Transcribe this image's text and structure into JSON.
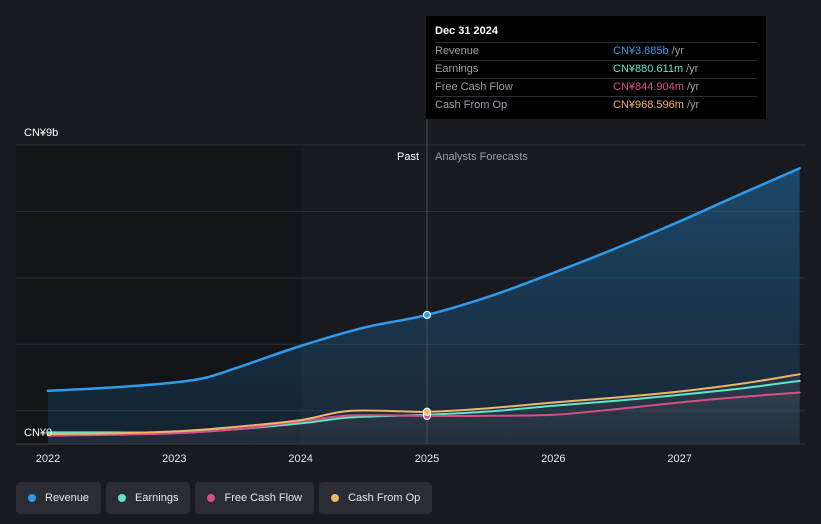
{
  "tooltip": {
    "date": "Dec 31 2024",
    "rows": [
      {
        "label": "Revenue",
        "value": "CN¥3.885b",
        "unit": "/yr",
        "color": "#2f9bea"
      },
      {
        "label": "Earnings",
        "value": "CN¥880.611m",
        "unit": "/yr",
        "color": "#5ee6c8"
      },
      {
        "label": "Free Cash Flow",
        "value": "CN¥844.904m",
        "unit": "/yr",
        "color": "#d64f86"
      },
      {
        "label": "Cash From Op",
        "value": "CN¥968.596m",
        "unit": "/yr",
        "color": "#f0b46a"
      }
    ]
  },
  "legend": [
    {
      "label": "Revenue",
      "color": "#2f9bea"
    },
    {
      "label": "Earnings",
      "color": "#5ee6c8"
    },
    {
      "label": "Free Cash Flow",
      "color": "#d64f86"
    },
    {
      "label": "Cash From Op",
      "color": "#f0b46a"
    }
  ],
  "chart_data": {
    "type": "line",
    "title": "",
    "y_unit_labels": {
      "top": "CN¥9b",
      "bottom": "CN¥0"
    },
    "ylim": [
      0,
      9
    ],
    "xlim": [
      2021.75,
      2027.95
    ],
    "x_ticks": [
      "2022",
      "2023",
      "2024",
      "2025",
      "2026",
      "2027"
    ],
    "x_tick_values": [
      2022,
      2023,
      2024,
      2025,
      2026,
      2027
    ],
    "past_label": "Past",
    "forecast_label": "Analysts Forecasts",
    "past_region": [
      2024.0,
      2025.0
    ],
    "divider_x": 2025.0,
    "series": [
      {
        "name": "Revenue",
        "color": "#2f9bea",
        "x": [
          2022.0,
          2022.5,
          2023.0,
          2023.25,
          2023.5,
          2024.0,
          2024.5,
          2025.0,
          2025.5,
          2026.0,
          2026.5,
          2027.0,
          2027.5,
          2027.95
        ],
        "y": [
          1.6,
          1.7,
          1.85,
          2.0,
          2.3,
          2.95,
          3.5,
          3.885,
          4.45,
          5.15,
          5.9,
          6.7,
          7.55,
          8.3
        ]
      },
      {
        "name": "Earnings",
        "color": "#5ee6c8",
        "x": [
          2022.0,
          2022.5,
          2023.0,
          2023.5,
          2024.0,
          2024.4,
          2025.0,
          2025.5,
          2026.0,
          2026.5,
          2027.0,
          2027.5,
          2027.95
        ],
        "y": [
          0.35,
          0.35,
          0.35,
          0.45,
          0.62,
          0.8,
          0.88,
          0.98,
          1.15,
          1.3,
          1.48,
          1.68,
          1.9
        ]
      },
      {
        "name": "Free Cash Flow",
        "color": "#d64f86",
        "x": [
          2022.0,
          2022.5,
          2023.0,
          2023.5,
          2024.0,
          2024.4,
          2025.0,
          2025.5,
          2026.0,
          2026.5,
          2027.0,
          2027.5,
          2027.95
        ],
        "y": [
          0.25,
          0.28,
          0.32,
          0.45,
          0.68,
          0.86,
          0.845,
          0.85,
          0.88,
          1.05,
          1.25,
          1.42,
          1.55
        ]
      },
      {
        "name": "Cash From Op",
        "color": "#f0b46a",
        "x": [
          2022.0,
          2022.5,
          2023.0,
          2023.5,
          2024.0,
          2024.4,
          2025.0,
          2025.5,
          2026.0,
          2026.5,
          2027.0,
          2027.5,
          2027.95
        ],
        "y": [
          0.3,
          0.32,
          0.38,
          0.52,
          0.72,
          1.0,
          0.97,
          1.08,
          1.25,
          1.4,
          1.58,
          1.82,
          2.1
        ]
      }
    ]
  }
}
